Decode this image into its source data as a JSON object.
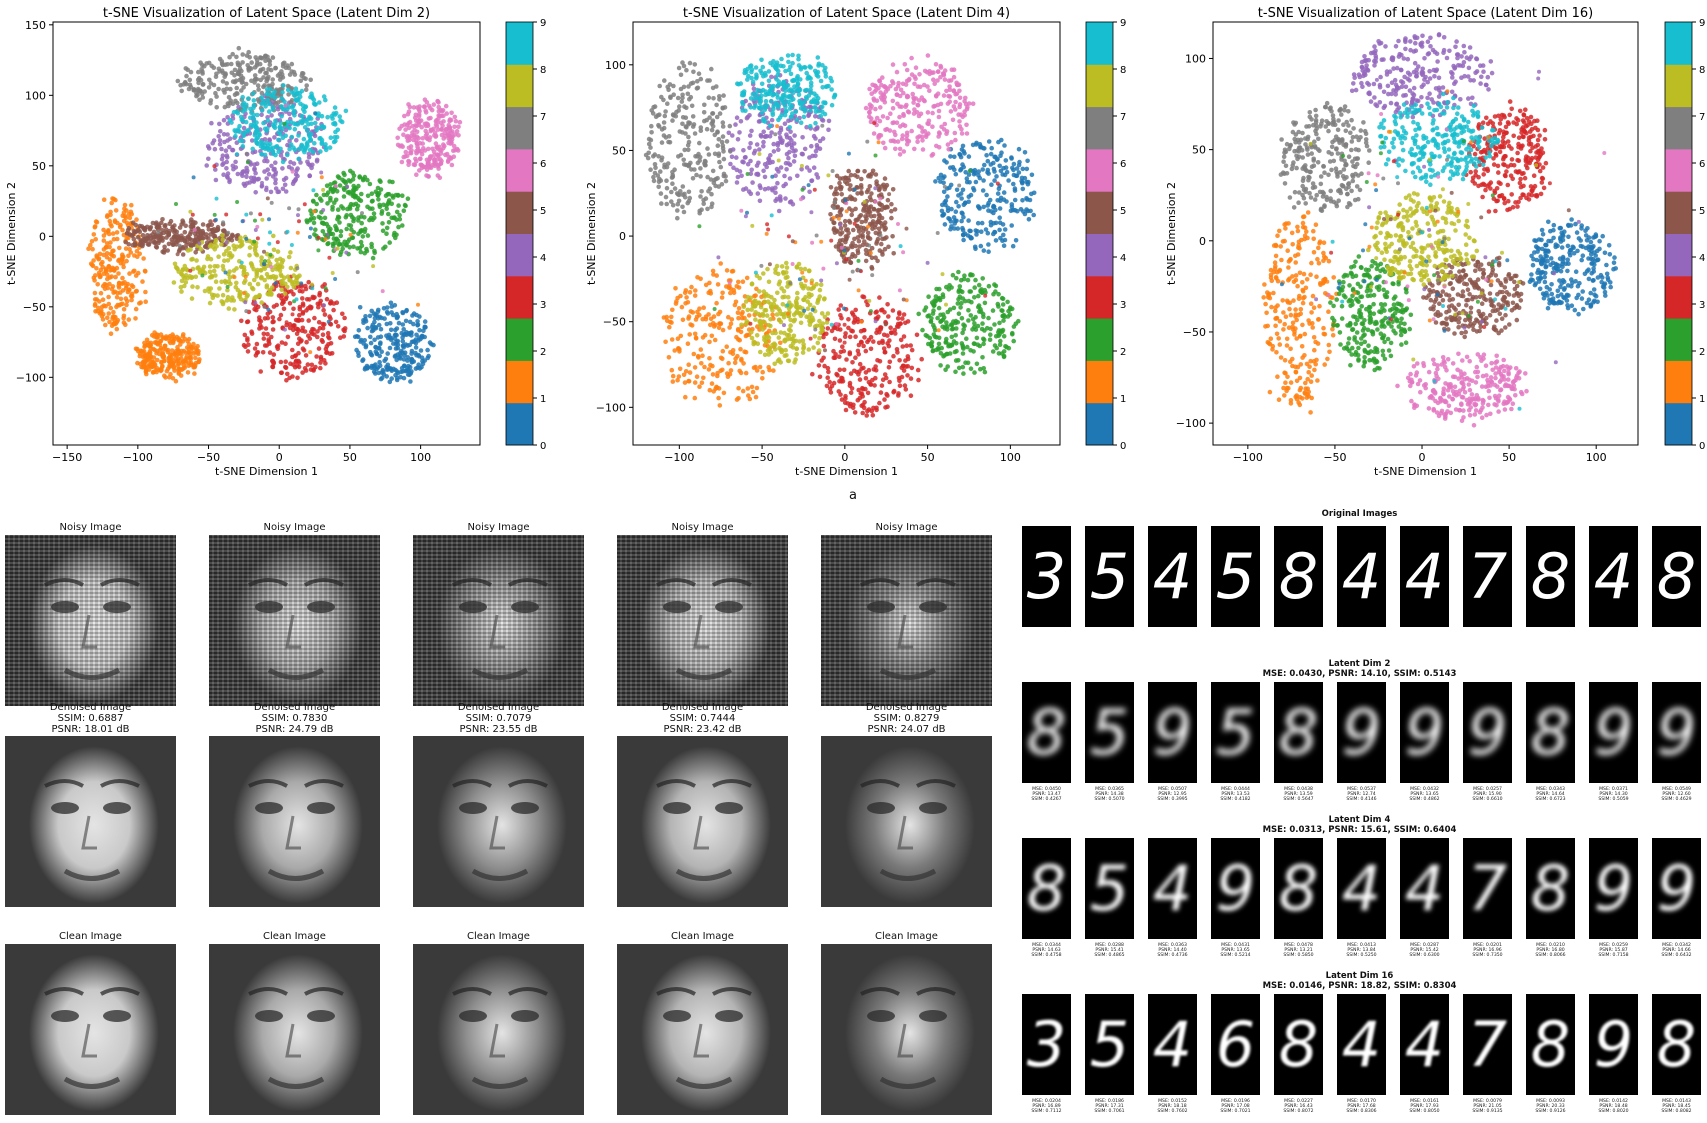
{
  "colors": [
    "#1f77b4",
    "#ff7f0e",
    "#2ca02c",
    "#d62728",
    "#9467bd",
    "#8c564b",
    "#e377c2",
    "#7f7f7f",
    "#bcbd22",
    "#17becf"
  ],
  "chart_data": [
    {
      "type": "scatter",
      "title": "t-SNE Visualization of Latent Space (Latent Dim 2)",
      "xlabel": "t-SNE Dimension 1",
      "ylabel": "t-SNE Dimension 2",
      "xlim": [
        -160,
        142
      ],
      "ylim": [
        -148,
        152
      ],
      "xticks": [
        -150,
        -100,
        -50,
        0,
        50,
        100
      ],
      "yticks": [
        -100,
        -50,
        0,
        50,
        100,
        150
      ],
      "colorbar": {
        "min": 0,
        "max": 9,
        "ticks": [
          0,
          1,
          2,
          3,
          4,
          5,
          6,
          7,
          8,
          9
        ]
      },
      "clusters": [
        {
          "label": 0,
          "cx": 80,
          "cy": -75,
          "rx": 28,
          "ry": 28
        },
        {
          "label": 1,
          "cx": -115,
          "cy": -20,
          "rx": 20,
          "ry": 48
        },
        {
          "label": 1,
          "cx": -78,
          "cy": -85,
          "rx": 22,
          "ry": 15
        },
        {
          "label": 2,
          "cx": 55,
          "cy": 15,
          "rx": 35,
          "ry": 30
        },
        {
          "label": 3,
          "cx": 10,
          "cy": -65,
          "rx": 35,
          "ry": 35
        },
        {
          "label": 4,
          "cx": -10,
          "cy": 65,
          "rx": 40,
          "ry": 35
        },
        {
          "label": 5,
          "cx": -70,
          "cy": 0,
          "rx": 40,
          "ry": 10
        },
        {
          "label": 6,
          "cx": 105,
          "cy": 70,
          "rx": 22,
          "ry": 28
        },
        {
          "label": 7,
          "cx": -25,
          "cy": 110,
          "rx": 45,
          "ry": 20
        },
        {
          "label": 8,
          "cx": -30,
          "cy": -25,
          "rx": 45,
          "ry": 25
        },
        {
          "label": 9,
          "cx": 5,
          "cy": 80,
          "rx": 40,
          "ry": 25
        }
      ]
    },
    {
      "type": "scatter",
      "title": "t-SNE Visualization of Latent Space (Latent Dim 4)",
      "xlabel": "t-SNE Dimension 1",
      "ylabel": "t-SNE Dimension 2",
      "xlim": [
        -128,
        130
      ],
      "ylim": [
        -122,
        125
      ],
      "xticks": [
        -100,
        -50,
        0,
        50,
        100
      ],
      "yticks": [
        -100,
        -50,
        0,
        50,
        100
      ],
      "colorbar": {
        "min": 0,
        "max": 9,
        "ticks": [
          0,
          1,
          2,
          3,
          4,
          5,
          6,
          7,
          8,
          9
        ]
      },
      "clusters": [
        {
          "label": 0,
          "cx": 85,
          "cy": 25,
          "rx": 30,
          "ry": 32
        },
        {
          "label": 1,
          "cx": -75,
          "cy": -60,
          "rx": 35,
          "ry": 40
        },
        {
          "label": 2,
          "cx": 75,
          "cy": -50,
          "rx": 28,
          "ry": 30
        },
        {
          "label": 3,
          "cx": 15,
          "cy": -70,
          "rx": 30,
          "ry": 35
        },
        {
          "label": 4,
          "cx": -40,
          "cy": 55,
          "rx": 30,
          "ry": 40
        },
        {
          "label": 5,
          "cx": 10,
          "cy": 10,
          "rx": 20,
          "ry": 30
        },
        {
          "label": 6,
          "cx": 45,
          "cy": 75,
          "rx": 32,
          "ry": 28
        },
        {
          "label": 7,
          "cx": -95,
          "cy": 55,
          "rx": 25,
          "ry": 45
        },
        {
          "label": 8,
          "cx": -35,
          "cy": -45,
          "rx": 25,
          "ry": 30
        },
        {
          "label": 9,
          "cx": -35,
          "cy": 85,
          "rx": 30,
          "ry": 20
        }
      ]
    },
    {
      "type": "scatter",
      "title": "t-SNE Visualization of Latent Space (Latent Dim 16)",
      "xlabel": "t-SNE Dimension 1",
      "ylabel": "t-SNE Dimension 2",
      "xlim": [
        -120,
        124
      ],
      "ylim": [
        -112,
        120
      ],
      "xticks": [
        -100,
        -50,
        0,
        50,
        100
      ],
      "yticks": [
        -100,
        -50,
        0,
        50,
        100
      ],
      "colorbar": {
        "min": 0,
        "max": 9,
        "ticks": [
          0,
          1,
          2,
          3,
          4,
          5,
          6,
          7,
          8,
          9
        ]
      },
      "clusters": [
        {
          "label": 0,
          "cx": 85,
          "cy": -15,
          "rx": 25,
          "ry": 25
        },
        {
          "label": 1,
          "cx": -70,
          "cy": -40,
          "rx": 20,
          "ry": 55
        },
        {
          "label": 2,
          "cx": -30,
          "cy": -40,
          "rx": 22,
          "ry": 30
        },
        {
          "label": 3,
          "cx": 50,
          "cy": 45,
          "rx": 22,
          "ry": 28
        },
        {
          "label": 4,
          "cx": 0,
          "cy": 90,
          "rx": 40,
          "ry": 22
        },
        {
          "label": 5,
          "cx": 30,
          "cy": -30,
          "rx": 28,
          "ry": 22
        },
        {
          "label": 6,
          "cx": 25,
          "cy": -80,
          "rx": 35,
          "ry": 18
        },
        {
          "label": 7,
          "cx": -55,
          "cy": 45,
          "rx": 25,
          "ry": 30
        },
        {
          "label": 8,
          "cx": 0,
          "cy": 0,
          "rx": 30,
          "ry": 25
        },
        {
          "label": 9,
          "cx": 10,
          "cy": 55,
          "rx": 35,
          "ry": 22
        }
      ]
    }
  ],
  "figure_caption": "a",
  "denoise": {
    "noisy_label": "Noisy Image",
    "clean_label": "Clean Image",
    "denoised_label": "Denoised Image",
    "items": [
      {
        "ssim": "SSIM: 0.6887",
        "psnr": "PSNR: 18.01 dB"
      },
      {
        "ssim": "SSIM: 0.7830",
        "psnr": "PSNR: 24.79 dB"
      },
      {
        "ssim": "SSIM: 0.7079",
        "psnr": "PSNR: 23.55 dB"
      },
      {
        "ssim": "SSIM: 0.7444",
        "psnr": "PSNR: 23.42 dB"
      },
      {
        "ssim": "SSIM: 0.8279",
        "psnr": "PSNR: 24.07 dB"
      }
    ]
  },
  "digits": {
    "original_title": "Original Images",
    "original_digits": [
      "3",
      "5",
      "4",
      "5",
      "8",
      "4",
      "4",
      "7",
      "8",
      "4",
      "8"
    ],
    "rows": [
      {
        "title": "Latent Dim 2",
        "summary": "MSE: 0.0430, PSNR: 14.10, SSIM: 0.5143",
        "digits": [
          "8",
          "5",
          "9",
          "5",
          "8",
          "9",
          "9",
          "9",
          "8",
          "9",
          "9"
        ],
        "metrics": [
          [
            "MSE: 0.0450",
            "PSNR: 13.47",
            "SSIM: 0.4267"
          ],
          [
            "MSE: 0.0365",
            "PSNR: 14.38",
            "SSIM: 0.5070"
          ],
          [
            "MSE: 0.0507",
            "PSNR: 12.95",
            "SSIM: 0.3995"
          ],
          [
            "MSE: 0.0444",
            "PSNR: 13.53",
            "SSIM: 0.4182"
          ],
          [
            "MSE: 0.0438",
            "PSNR: 13.59",
            "SSIM: 0.5647"
          ],
          [
            "MSE: 0.0537",
            "PSNR: 12.74",
            "SSIM: 0.4146"
          ],
          [
            "MSE: 0.0432",
            "PSNR: 13.65",
            "SSIM: 0.4862"
          ],
          [
            "MSE: 0.0257",
            "PSNR: 15.90",
            "SSIM: 0.6610"
          ],
          [
            "MSE: 0.0343",
            "PSNR: 14.64",
            "SSIM: 0.6723"
          ],
          [
            "MSE: 0.0371",
            "PSNR: 14.30",
            "SSIM: 0.5059"
          ],
          [
            "MSE: 0.0549",
            "PSNR: 12.60",
            "SSIM: 0.4629"
          ]
        ]
      },
      {
        "title": "Latent Dim 4",
        "summary": "MSE: 0.0313, PSNR: 15.61, SSIM: 0.6404",
        "digits": [
          "8",
          "5",
          "4",
          "9",
          "8",
          "4",
          "4",
          "7",
          "8",
          "9",
          "9"
        ],
        "metrics": [
          [
            "MSE: 0.0344",
            "PSNR: 14.63",
            "SSIM: 0.4758"
          ],
          [
            "MSE: 0.0288",
            "PSNR: 15.41",
            "SSIM: 0.4865"
          ],
          [
            "MSE: 0.0363",
            "PSNR: 14.40",
            "SSIM: 0.4736"
          ],
          [
            "MSE: 0.0431",
            "PSNR: 13.65",
            "SSIM: 0.5214"
          ],
          [
            "MSE: 0.0478",
            "PSNR: 13.21",
            "SSIM: 0.5850"
          ],
          [
            "MSE: 0.0413",
            "PSNR: 13.84",
            "SSIM: 0.5250"
          ],
          [
            "MSE: 0.0287",
            "PSNR: 15.42",
            "SSIM: 0.6300"
          ],
          [
            "MSE: 0.0201",
            "PSNR: 16.96",
            "SSIM: 0.7350"
          ],
          [
            "MSE: 0.0210",
            "PSNR: 16.80",
            "SSIM: 0.8066"
          ],
          [
            "MSE: 0.0259",
            "PSNR: 15.87",
            "SSIM: 0.7158"
          ],
          [
            "MSE: 0.0342",
            "PSNR: 14.66",
            "SSIM: 0.6432"
          ]
        ]
      },
      {
        "title": "Latent Dim 16",
        "summary": "MSE: 0.0146, PSNR: 18.82, SSIM: 0.8304",
        "digits": [
          "3",
          "5",
          "4",
          "6",
          "8",
          "4",
          "4",
          "7",
          "8",
          "9",
          "8"
        ],
        "metrics": [
          [
            "MSE: 0.0204",
            "PSNR: 16.89",
            "SSIM: 0.7112"
          ],
          [
            "MSE: 0.0186",
            "PSNR: 17.31",
            "SSIM: 0.7061"
          ],
          [
            "MSE: 0.0152",
            "PSNR: 18.18",
            "SSIM: 0.7602"
          ],
          [
            "MSE: 0.0196",
            "PSNR: 17.08",
            "SSIM: 0.7021"
          ],
          [
            "MSE: 0.0227",
            "PSNR: 16.43",
            "SSIM: 0.8072"
          ],
          [
            "MSE: 0.0170",
            "PSNR: 17.68",
            "SSIM: 0.8306"
          ],
          [
            "MSE: 0.0161",
            "PSNR: 17.93",
            "SSIM: 0.8050"
          ],
          [
            "MSE: 0.0079",
            "PSNR: 21.05",
            "SSIM: 0.9135"
          ],
          [
            "MSE: 0.0093",
            "PSNR: 20.33",
            "SSIM: 0.9126"
          ],
          [
            "MSE: 0.0142",
            "PSNR: 18.48",
            "SSIM: 0.8020"
          ],
          [
            "MSE: 0.0143",
            "PSNR: 18.45",
            "SSIM: 0.8082"
          ]
        ]
      }
    ]
  }
}
